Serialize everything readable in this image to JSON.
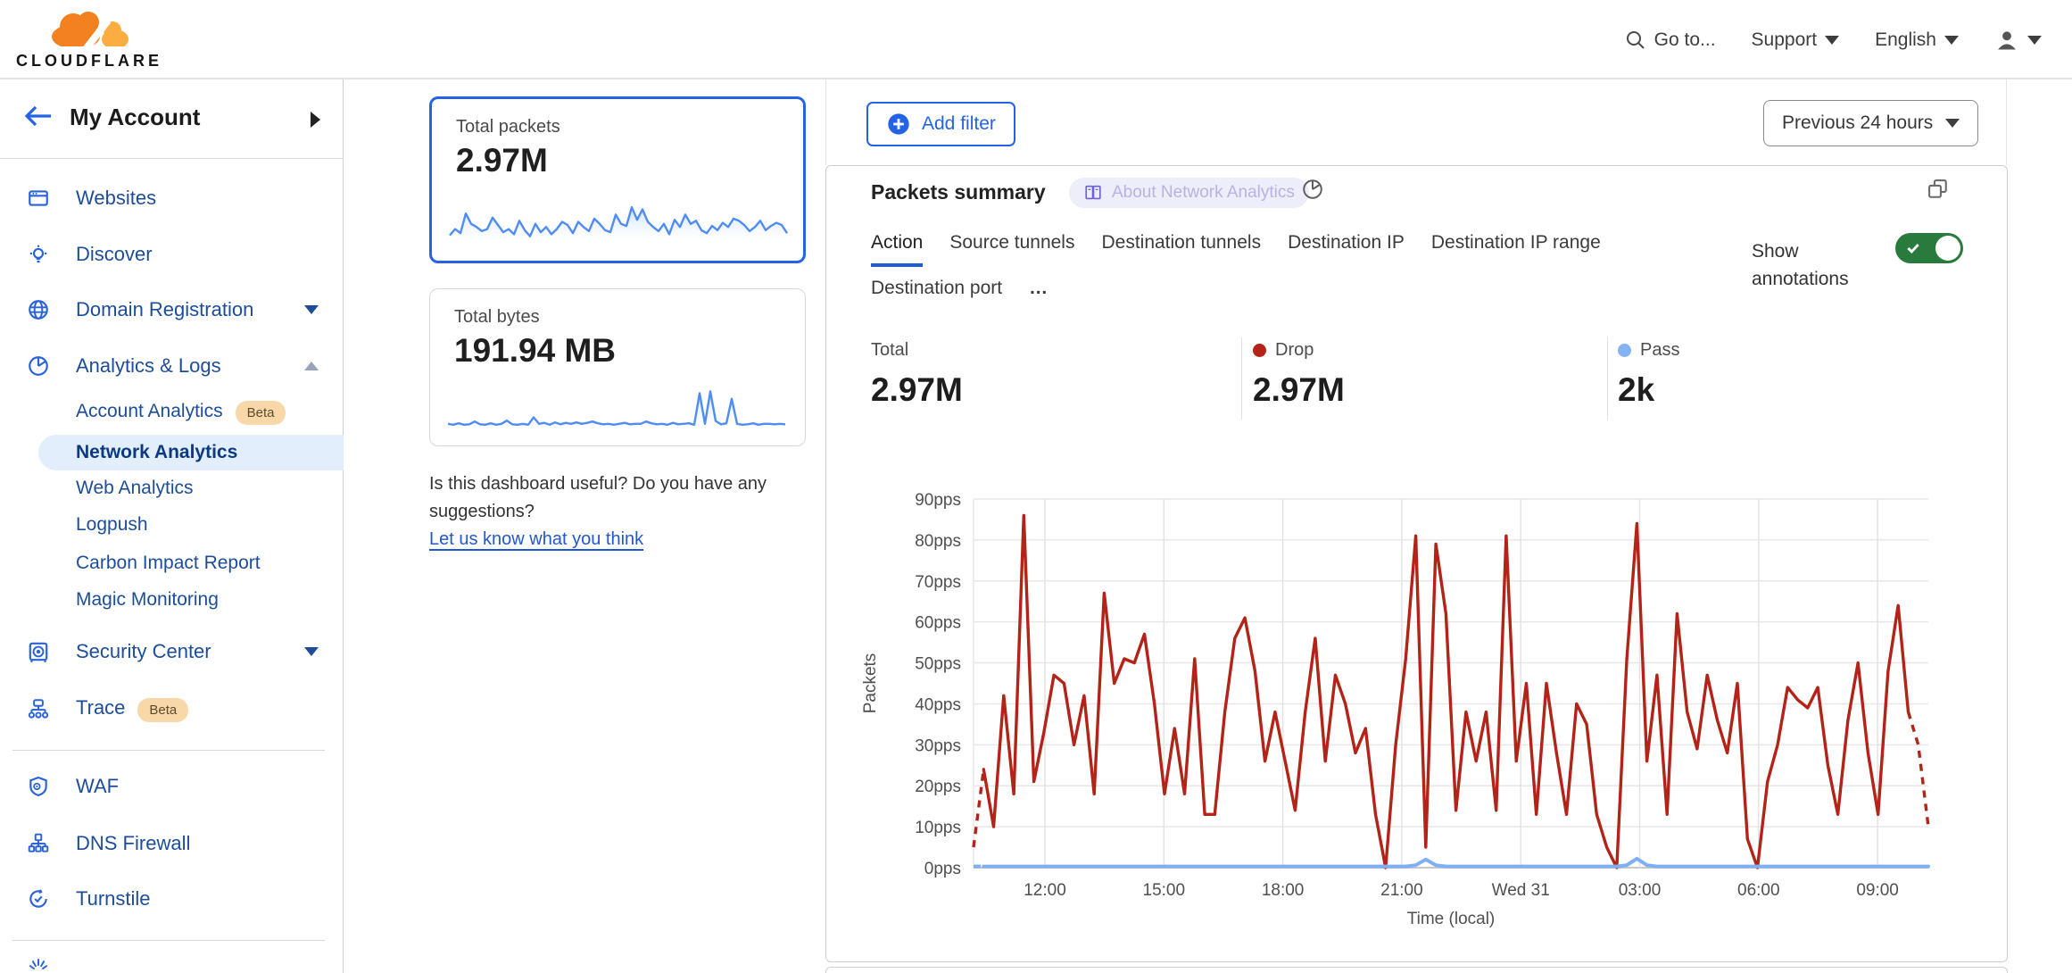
{
  "topbar": {
    "brand": "CLOUDFLARE",
    "goto_label": "Go to...",
    "support_label": "Support",
    "language_label": "English"
  },
  "sidebar": {
    "account": {
      "label": "My Account"
    },
    "items_top": [
      {
        "label": "Websites"
      },
      {
        "label": "Discover"
      },
      {
        "label": "Domain Registration",
        "has_caret": true
      }
    ],
    "analytics_section": {
      "label": "Analytics & Logs",
      "expanded": true,
      "children": [
        {
          "label": "Account Analytics",
          "badge": "Beta"
        },
        {
          "label": "Network Analytics",
          "selected": true
        },
        {
          "label": "Web Analytics"
        },
        {
          "label": "Logpush"
        },
        {
          "label": "Carbon Impact Report"
        },
        {
          "label": "Magic Monitoring"
        }
      ]
    },
    "items_mid": [
      {
        "label": "Security Center",
        "has_caret": true
      },
      {
        "label": "Trace",
        "badge": "Beta"
      }
    ],
    "items_lower": [
      {
        "label": "WAF"
      },
      {
        "label": "DNS Firewall"
      },
      {
        "label": "Turnstile"
      }
    ]
  },
  "cards": [
    {
      "title": "Total packets",
      "value": "2.97M",
      "selected": true,
      "sparkline": [
        18,
        30,
        22,
        60,
        40,
        34,
        26,
        30,
        52,
        38,
        24,
        30,
        20,
        46,
        28,
        16,
        40,
        24,
        34,
        20,
        30,
        44,
        38,
        22,
        44,
        34,
        26,
        50,
        40,
        28,
        24,
        58,
        40,
        36,
        72,
        48,
        68,
        44,
        34,
        26,
        40,
        20,
        48,
        34,
        58,
        40,
        46,
        28,
        22,
        36,
        28,
        42,
        34,
        50,
        46,
        38,
        26,
        34,
        46,
        28,
        36,
        42,
        38,
        22
      ]
    },
    {
      "title": "Total bytes",
      "value": "191.94 MB",
      "selected": false,
      "sparkline": [
        12,
        10,
        13,
        10,
        11,
        17,
        11,
        10,
        13,
        10,
        12,
        19,
        11,
        10,
        12,
        10,
        26,
        12,
        14,
        10,
        15,
        11,
        14,
        12,
        15,
        12,
        14,
        17,
        13,
        11,
        12,
        10,
        12,
        14,
        11,
        12,
        12,
        17,
        13,
        11,
        12,
        10,
        14,
        11,
        12,
        13,
        10,
        78,
        12,
        82,
        18,
        11,
        13,
        66,
        12,
        10,
        11,
        13,
        10,
        12,
        12,
        11,
        12,
        11
      ]
    }
  ],
  "feedback": {
    "line1": "Is this dashboard useful? Do you have any",
    "line2": "suggestions?",
    "link": "Let us know what you think"
  },
  "toolbar": {
    "add_filter_label": "Add filter",
    "time_range_label": "Previous 24 hours"
  },
  "panel": {
    "title": "Packets summary",
    "about_badge": "About Network Analytics",
    "tabs": [
      "Action",
      "Source tunnels",
      "Destination tunnels",
      "Destination IP",
      "Destination IP range",
      "Destination port"
    ],
    "active_tab": "Action",
    "more_label": "…",
    "show_annotations_label": "Show annotations",
    "annotations_enabled": true,
    "stats": [
      {
        "label": "Total",
        "value": "2.97M",
        "dot": null
      },
      {
        "label": "Drop",
        "value": "2.97M",
        "dot": "#b42318"
      },
      {
        "label": "Pass",
        "value": "2k",
        "dot": "#85b2f3"
      }
    ]
  },
  "chart_data": {
    "type": "line",
    "title": "Packets summary",
    "xlabel": "Time (local)",
    "ylabel": "Packets",
    "x_ticks": [
      "12:00",
      "15:00",
      "18:00",
      "21:00",
      "Wed 31",
      "03:00",
      "06:00",
      "09:00"
    ],
    "y_tick_labels": [
      "0pps",
      "10pps",
      "20pps",
      "30pps",
      "40pps",
      "50pps",
      "60pps",
      "70pps",
      "80pps",
      "90pps"
    ],
    "ylim": [
      0,
      90
    ],
    "grid": true,
    "unit": "pps",
    "series": [
      {
        "name": "Drop",
        "color": "#b42318",
        "dashed_start_segments": 1,
        "dashed_end_segments": 2,
        "values": [
          5,
          24,
          10,
          42,
          18,
          86,
          21,
          33,
          47,
          45,
          30,
          42,
          18,
          67,
          45,
          51,
          50,
          57,
          40,
          18,
          34,
          18,
          51,
          13,
          13,
          38,
          56,
          61,
          48,
          26,
          38,
          26,
          14,
          38,
          56,
          26,
          47,
          40,
          28,
          34,
          13,
          0,
          30,
          51,
          81,
          5,
          79,
          62,
          14,
          38,
          26,
          38,
          14,
          81,
          26,
          45,
          13,
          45,
          28,
          13,
          40,
          35,
          13,
          5,
          0,
          51,
          84,
          26,
          47,
          13,
          62,
          38,
          29,
          47,
          36,
          28,
          45,
          7,
          0,
          21,
          30,
          44,
          41,
          39,
          44,
          25,
          13,
          36,
          50,
          28,
          13,
          48,
          64,
          38,
          30,
          10
        ]
      },
      {
        "name": "Pass",
        "color": "#7fb0f5",
        "dashed_start_segments": 1,
        "dashed_end_segments": 0,
        "values": [
          0.3,
          0.3,
          0.3,
          0.3,
          0.3,
          0.3,
          0.3,
          0.3,
          0.3,
          0.3,
          0.3,
          0.3,
          0.3,
          0.3,
          0.3,
          0.3,
          0.3,
          0.3,
          0.3,
          0.3,
          0.3,
          0.3,
          0.3,
          0.3,
          0.3,
          0.3,
          0.3,
          0.3,
          0.3,
          0.3,
          0.3,
          0.3,
          0.3,
          0.3,
          0.3,
          0.3,
          0.3,
          0.3,
          0.3,
          0.3,
          0.3,
          0.3,
          0.3,
          0.3,
          0.6,
          2,
          0.6,
          0.3,
          0.3,
          0.3,
          0.3,
          0.3,
          0.3,
          0.3,
          0.3,
          0.3,
          0.3,
          0.3,
          0.3,
          0.3,
          0.3,
          0.3,
          0.3,
          0.3,
          0.3,
          0.6,
          2.2,
          0.6,
          0.3,
          0.3,
          0.3,
          0.3,
          0.3,
          0.3,
          0.3,
          0.3,
          0.3,
          0.3,
          0.3,
          0.3,
          0.3,
          0.3,
          0.3,
          0.3,
          0.3,
          0.3,
          0.3,
          0.3,
          0.3,
          0.3,
          0.3,
          0.3,
          0.3,
          0.3,
          0.3,
          0.3
        ]
      }
    ]
  },
  "colors": {
    "brand_orange": "#f48120",
    "brand_orange_light": "#fbad41",
    "accent_blue": "#2463e6",
    "nav_link_blue": "#1d4d9a",
    "selected_nav_text": "#0c3a80",
    "selected_nav_bg": "#e2eefc",
    "beta_bg": "#f8d8a8",
    "beta_text": "#5d4b2d",
    "link_blue": "#2257d1",
    "toggle_green": "#297a3d",
    "drop_red": "#b42318",
    "pass_blue": "#85b2f3",
    "sparkline_blue": "#4f8df2",
    "about_badge_bg": "#eeedfa",
    "about_badge_text": "#b7b2e4"
  }
}
